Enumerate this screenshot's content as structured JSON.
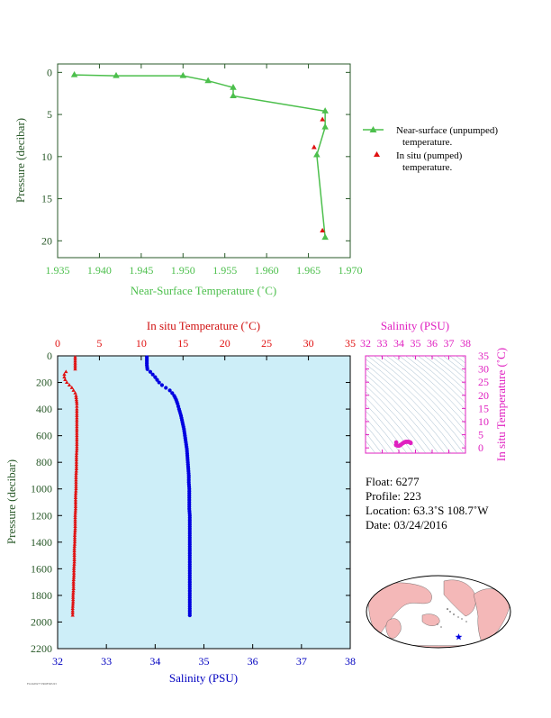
{
  "colors": {
    "near_surface": "#4cbf4c",
    "in_situ": "#e01010",
    "salinity": "#0000e0",
    "ts_magenta": "#e020c0",
    "profile_bg": "#cdeef8",
    "land": "#f4b8b8",
    "ocean": "#ffffff"
  },
  "chart_data": [
    {
      "type": "line",
      "xlabel": "Near-Surface Temperature (˚C)",
      "ylabel": "Pressure (decibar)",
      "xlim": [
        1.935,
        1.97
      ],
      "ylim": [
        22,
        -1
      ],
      "x_ticks": [
        "1.935",
        "1.940",
        "1.945",
        "1.950",
        "1.955",
        "1.960",
        "1.965",
        "1.970"
      ],
      "y_ticks": [
        "0",
        "5",
        "10",
        "15",
        "20"
      ],
      "legend": {
        "placement": "right",
        "entries": [
          {
            "line1": "Near-surface (unpumped)",
            "line2": "temperature."
          },
          {
            "line1": "In situ (pumped)",
            "line2": "temperature."
          }
        ]
      },
      "series": [
        {
          "key": "near_surface",
          "marker": "triangle-line",
          "points": [
            [
              1.937,
              0.3
            ],
            [
              1.942,
              0.4
            ],
            [
              1.95,
              0.4
            ],
            [
              1.953,
              1.0
            ],
            [
              1.956,
              1.8
            ],
            [
              1.956,
              2.8
            ],
            [
              1.967,
              4.6
            ],
            [
              1.967,
              6.5
            ],
            [
              1.966,
              9.8
            ],
            [
              1.967,
              19.6
            ]
          ]
        },
        {
          "key": "in_situ",
          "marker": "triangle",
          "points": [
            [
              1.967,
              5.6
            ],
            [
              1.966,
              8.9
            ],
            [
              1.967,
              18.8
            ]
          ]
        }
      ]
    },
    {
      "type": "line",
      "xlabel_top": "In situ Temperature (˚C)",
      "xlabel_bottom": "Salinity (PSU)",
      "ylabel": "Pressure (decibar)",
      "temp_lim": [
        0,
        35
      ],
      "sal_lim": [
        32,
        38
      ],
      "ylim": [
        2200,
        0
      ],
      "temp_ticks": [
        "0",
        "5",
        "10",
        "15",
        "20",
        "25",
        "30",
        "35"
      ],
      "sal_ticks": [
        "32",
        "33",
        "34",
        "35",
        "36",
        "37",
        "38"
      ],
      "y_ticks": [
        "0",
        "200",
        "400",
        "600",
        "800",
        "1000",
        "1200",
        "1400",
        "1600",
        "1800",
        "2000",
        "2200"
      ],
      "temperature": {
        "pressure": [
          10,
          40,
          70,
          100,
          120,
          140,
          160,
          180,
          200,
          220,
          240,
          260,
          280,
          300,
          330,
          360,
          400,
          450,
          500,
          550,
          600,
          650,
          700,
          750,
          800,
          850,
          900,
          950,
          1000,
          1050,
          1100,
          1150,
          1200,
          1250,
          1300,
          1350,
          1400,
          1450,
          1500,
          1550,
          1600,
          1650,
          1700,
          1750,
          1800,
          1850,
          1900,
          1950
        ],
        "values": [
          2.1,
          2.1,
          2.1,
          2.1,
          1.0,
          0.8,
          0.8,
          0.9,
          1.1,
          1.4,
          1.7,
          1.9,
          2.1,
          2.2,
          2.25,
          2.3,
          2.3,
          2.3,
          2.3,
          2.3,
          2.3,
          2.3,
          2.3,
          2.25,
          2.25,
          2.25,
          2.2,
          2.2,
          2.2,
          2.15,
          2.15,
          2.15,
          2.1,
          2.1,
          2.1,
          2.05,
          2.05,
          2.0,
          2.0,
          2.0,
          1.95,
          1.95,
          1.9,
          1.9,
          1.85,
          1.85,
          1.8,
          1.8
        ]
      },
      "salinity": {
        "pressure": [
          10,
          40,
          70,
          100,
          120,
          140,
          160,
          180,
          200,
          220,
          240,
          260,
          280,
          300,
          330,
          360,
          400,
          450,
          500,
          550,
          600,
          650,
          700,
          750,
          800,
          850,
          900,
          950,
          1000,
          1050,
          1100,
          1150,
          1200,
          1250,
          1300,
          1350,
          1400,
          1450,
          1500,
          1550,
          1600,
          1650,
          1700,
          1750,
          1800,
          1850,
          1900,
          1950
        ],
        "values": [
          33.83,
          33.83,
          33.83,
          33.84,
          33.9,
          33.95,
          34.0,
          34.04,
          34.08,
          34.14,
          34.22,
          34.3,
          34.35,
          34.39,
          34.43,
          34.46,
          34.49,
          34.53,
          34.56,
          34.59,
          34.61,
          34.63,
          34.65,
          34.66,
          34.67,
          34.68,
          34.69,
          34.69,
          34.7,
          34.7,
          34.7,
          34.7,
          34.71,
          34.71,
          34.71,
          34.71,
          34.71,
          34.71,
          34.71,
          34.71,
          34.71,
          34.71,
          34.71,
          34.71,
          34.71,
          34.71,
          34.71,
          34.71
        ]
      }
    },
    {
      "type": "scatter",
      "xlabel": "Salinity (PSU)",
      "ylabel": "In situ Temperature (˚C)",
      "xlim": [
        32,
        38
      ],
      "ylim": [
        -2,
        35
      ],
      "x_ticks": [
        "32",
        "33",
        "34",
        "35",
        "36",
        "37",
        "38"
      ],
      "y_ticks": [
        "0",
        "5",
        "10",
        "15",
        "20",
        "25",
        "30",
        "35"
      ],
      "points": [
        [
          33.83,
          1.1
        ],
        [
          33.9,
          0.9
        ],
        [
          33.95,
          0.8
        ],
        [
          34.0,
          0.8
        ],
        [
          34.04,
          0.9
        ],
        [
          34.08,
          1.0
        ],
        [
          34.14,
          1.3
        ],
        [
          34.22,
          1.7
        ],
        [
          34.3,
          2.0
        ],
        [
          34.35,
          2.2
        ],
        [
          34.4,
          2.3
        ],
        [
          34.45,
          2.3
        ],
        [
          34.5,
          2.3
        ],
        [
          34.55,
          2.3
        ],
        [
          34.6,
          2.3
        ],
        [
          34.65,
          2.2
        ],
        [
          34.68,
          2.1
        ],
        [
          34.7,
          2.0
        ],
        [
          34.71,
          1.9
        ],
        [
          34.71,
          1.8
        ],
        [
          33.84,
          2.1
        ]
      ]
    }
  ],
  "float": {
    "float_line": "Float:  6277",
    "profile_line": "Profile:  223",
    "location_line": "Location:  63.3˚S  108.7˚W",
    "date_line": "Date:  03/24/2016"
  },
  "map": {
    "marker_icon": "star-icon",
    "lat": -63.3,
    "lon": -108.7
  },
  "footnote": "FLOAT6277 PROFILE223"
}
